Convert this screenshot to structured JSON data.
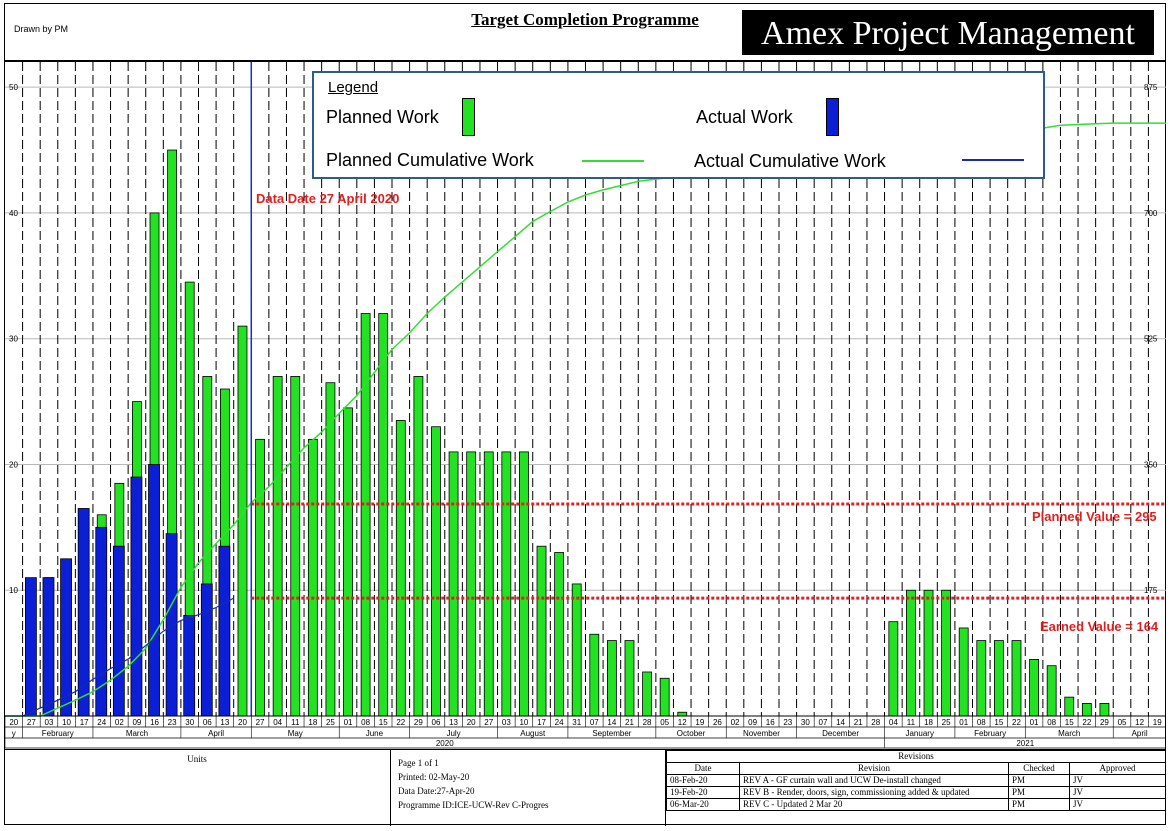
{
  "header": {
    "drawn_by": "Drawn by PM",
    "programme_title": "Target Completion Programme",
    "company": "Amex Project Management"
  },
  "legend": {
    "heading": "Legend",
    "planned_work": "Planned Work",
    "actual_work": "Actual Work",
    "planned_cumulative": "Planned Cumulative Work",
    "actual_cumulative": "Actual Cumulative Work"
  },
  "annotations": {
    "data_date": "Data Date 27 April 2020",
    "planned_value": "Planned Value = 295",
    "earned_value": "Earned Value = 164"
  },
  "colors": {
    "planned": "#22e222",
    "actual": "#0a1fd6",
    "planned_cum_line": "#33dd33",
    "actual_cum_line": "#1a2aa8",
    "data_date_line": "#1a2ad6",
    "value_lines": "#e02020"
  },
  "chart_data": {
    "type": "bar",
    "left_axis": {
      "range": [
        0,
        52
      ],
      "ticks": [
        "10",
        "20",
        "30",
        "40",
        "50"
      ]
    },
    "right_axis": {
      "range": [
        0,
        910
      ],
      "ticks": [
        "175",
        "350",
        "525",
        "700",
        "875"
      ]
    },
    "week_labels": [
      "20",
      "27",
      "03",
      "10",
      "17",
      "24",
      "02",
      "09",
      "16",
      "23",
      "30",
      "06",
      "13",
      "20",
      "27",
      "04",
      "11",
      "18",
      "25",
      "01",
      "08",
      "15",
      "22",
      "29",
      "06",
      "13",
      "20",
      "27",
      "03",
      "10",
      "17",
      "24",
      "31",
      "07",
      "14",
      "21",
      "28",
      "05",
      "12",
      "19",
      "26",
      "02",
      "09",
      "16",
      "23",
      "30",
      "07",
      "14",
      "21",
      "28",
      "04",
      "11",
      "18",
      "25",
      "01",
      "08",
      "15",
      "22",
      "01",
      "08",
      "15",
      "22",
      "29",
      "05",
      "12",
      "19"
    ],
    "months": [
      {
        "label": "y",
        "start": 0,
        "span": 1
      },
      {
        "label": "February",
        "start": 1,
        "span": 4
      },
      {
        "label": "March",
        "start": 5,
        "span": 5
      },
      {
        "label": "April",
        "start": 10,
        "span": 4
      },
      {
        "label": "May",
        "start": 14,
        "span": 5
      },
      {
        "label": "June",
        "start": 19,
        "span": 4
      },
      {
        "label": "July",
        "start": 23,
        "span": 5
      },
      {
        "label": "August",
        "start": 28,
        "span": 4
      },
      {
        "label": "September",
        "start": 32,
        "span": 5
      },
      {
        "label": "October",
        "start": 37,
        "span": 4
      },
      {
        "label": "November",
        "start": 41,
        "span": 4
      },
      {
        "label": "December",
        "start": 45,
        "span": 5
      },
      {
        "label": "January",
        "start": 50,
        "span": 4
      },
      {
        "label": "February",
        "start": 54,
        "span": 4
      },
      {
        "label": "March",
        "start": 58,
        "span": 5
      },
      {
        "label": "April",
        "start": 63,
        "span": 3
      }
    ],
    "years": [
      {
        "label": "2020",
        "start": 0,
        "span": 50
      },
      {
        "label": "2021",
        "start": 50,
        "span": 16
      }
    ],
    "planned": [
      0,
      0,
      11,
      11,
      12,
      16,
      18.5,
      25,
      40,
      45,
      34.5,
      27,
      26,
      31,
      22,
      27,
      27,
      22,
      26.5,
      24.5,
      32,
      32,
      23.5,
      27,
      23,
      21,
      21,
      21,
      21,
      21,
      13.5,
      13,
      10.5,
      6.5,
      6,
      6,
      3.5,
      3,
      0.3,
      0,
      0,
      0,
      0,
      0,
      0,
      0,
      0,
      0,
      0,
      0,
      7.5,
      10,
      10,
      10,
      7,
      6,
      6,
      6,
      4.5,
      4,
      1.5,
      1,
      1,
      0,
      0,
      0
    ],
    "actual": [
      0,
      11,
      11,
      12.5,
      16.5,
      15,
      13.5,
      19,
      20,
      14.5,
      8,
      10.5,
      13.5,
      0,
      0,
      0,
      0,
      0,
      0,
      0,
      0,
      0,
      0,
      0,
      0,
      0,
      0,
      0,
      0,
      0,
      0,
      0,
      0,
      0,
      0,
      0,
      0,
      0,
      0,
      0,
      0,
      0,
      0,
      0,
      0,
      0,
      0,
      0,
      0,
      0,
      0,
      0,
      0,
      0,
      0,
      0,
      0,
      0,
      0,
      0,
      0,
      0,
      0,
      0,
      0,
      0
    ],
    "planned_cumulative": [
      0,
      0,
      11,
      22,
      34,
      50,
      69,
      94,
      134,
      179,
      213,
      240,
      266,
      297,
      319,
      346,
      373,
      395,
      421,
      446,
      478,
      510,
      533,
      560,
      583,
      604,
      625,
      646,
      667,
      688,
      702,
      715,
      725,
      732,
      738,
      744,
      747,
      750,
      751,
      751,
      751,
      751,
      751,
      751,
      751,
      751,
      751,
      751,
      751,
      751,
      758,
      768,
      778,
      788,
      795,
      801,
      807,
      813,
      818,
      822,
      823,
      824,
      825,
      825,
      825,
      825
    ],
    "actual_cumulative": [
      0,
      11,
      22,
      34,
      51,
      66,
      79,
      98,
      118,
      133,
      141,
      151,
      164
    ],
    "data_date_week": 13,
    "planned_value": 295,
    "earned_value": 164
  },
  "footer": {
    "units": "Units",
    "page": "Page 1 of 1",
    "printed": "Printed: 02-May-20",
    "data_date": "Data Date:27-Apr-20",
    "programme_id": "Programme ID:ICE-UCW-Rev C-Progres",
    "revisions_title": "Revisions",
    "rev_headers": [
      "Date",
      "Revision",
      "Checked",
      "Approved"
    ],
    "revisions": [
      {
        "date": "08-Feb-20",
        "revision": "REV A - GF curtain wall and UCW De-install changed",
        "checked": "PM",
        "approved": "JV"
      },
      {
        "date": "19-Feb-20",
        "revision": "REV B - Render, doors, sign, commissioning added & updated",
        "checked": "PM",
        "approved": "JV"
      },
      {
        "date": "06-Mar-20",
        "revision": "REV C - Updated 2 Mar 20",
        "checked": "PM",
        "approved": "JV"
      }
    ]
  }
}
